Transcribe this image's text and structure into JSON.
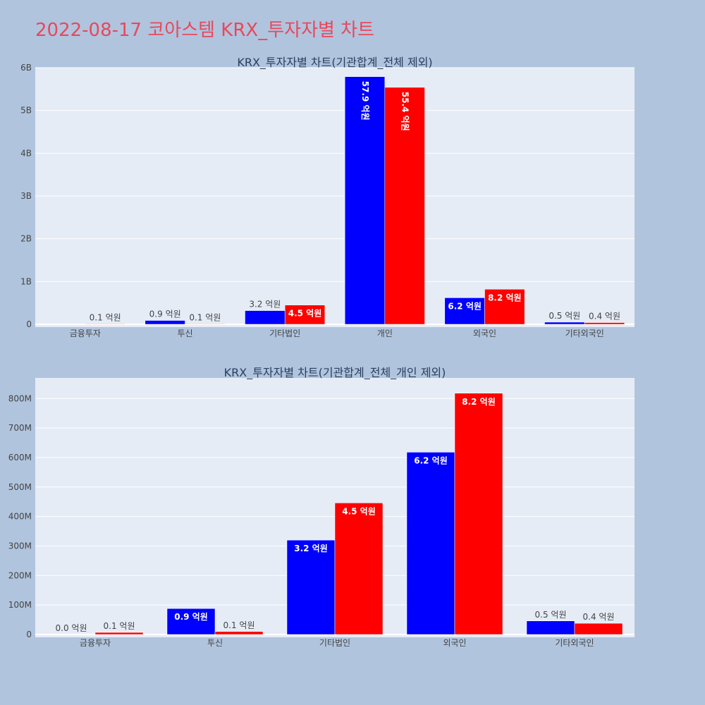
{
  "title": "2022-08-17 코아스템 KRX_투자자별 차트",
  "colors": {
    "background": "#b0c4de",
    "plot_bg": "#e5ecf6",
    "title": "#e8485c",
    "series1": "#0000ff",
    "series2": "#ff0000"
  },
  "chart_data": [
    {
      "type": "bar",
      "title": "KRX_투자자별 차트(기관합계_전체 제외)",
      "categories": [
        "금융투자",
        "투신",
        "기타법인",
        "개인",
        "외국인",
        "기타외국인"
      ],
      "ylim": [
        0,
        6000000000
      ],
      "yticks": [
        0,
        1000000000,
        2000000000,
        3000000000,
        4000000000,
        5000000000,
        6000000000
      ],
      "ytick_labels": [
        "0",
        "1B",
        "2B",
        "3B",
        "4B",
        "5B",
        "6B"
      ],
      "grid": true,
      "series": [
        {
          "color": "#0000ff",
          "values": [
            0,
            90000000,
            320000000,
            5790000000,
            620000000,
            50000000
          ],
          "labels": [
            "",
            "0.9 억원",
            "3.2 억원",
            "57.9 억원",
            "6.2 억원",
            "0.5 억원"
          ]
        },
        {
          "color": "#ff0000",
          "values": [
            10000000,
            10000000,
            450000000,
            5540000000,
            820000000,
            40000000
          ],
          "labels": [
            "0.1 억원",
            "0.1 억원",
            "4.5 억원",
            "55.4 억원",
            "8.2 억원",
            "0.4 억원"
          ]
        }
      ]
    },
    {
      "type": "bar",
      "title": "KRX_투자자별 차트(기관합계_전체_개인 제외)",
      "categories": [
        "금융투자",
        "투신",
        "기타법인",
        "외국인",
        "기타외국인"
      ],
      "ylim": [
        0,
        870000000
      ],
      "yticks": [
        0,
        100000000,
        200000000,
        300000000,
        400000000,
        500000000,
        600000000,
        700000000,
        800000000
      ],
      "ytick_labels": [
        "0",
        "100M",
        "200M",
        "300M",
        "400M",
        "500M",
        "600M",
        "700M",
        "800M"
      ],
      "grid": true,
      "series": [
        {
          "color": "#0000ff",
          "values": [
            0,
            88000000,
            320000000,
            618000000,
            46000000
          ],
          "labels": [
            "0.0 억원",
            "0.9 억원",
            "3.2 억원",
            "6.2 억원",
            "0.5 억원"
          ]
        },
        {
          "color": "#ff0000",
          "values": [
            7000000,
            10000000,
            446000000,
            818000000,
            38000000
          ],
          "labels": [
            "0.1 억원",
            "0.1 억원",
            "4.5 억원",
            "8.2 억원",
            "0.4 억원"
          ]
        }
      ]
    }
  ]
}
